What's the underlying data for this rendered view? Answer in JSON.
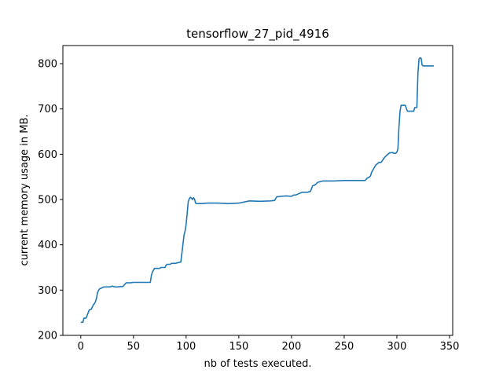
{
  "chart_data": {
    "type": "line",
    "title": "tensorflow_27_pid_4916",
    "xlabel": "nb of tests executed.",
    "ylabel": "current memory usage in MB.",
    "xlim": [
      -17,
      353
    ],
    "ylim": [
      200,
      840
    ],
    "xticks": [
      0,
      50,
      100,
      150,
      200,
      250,
      300,
      350
    ],
    "yticks": [
      200,
      300,
      400,
      500,
      600,
      700,
      800
    ],
    "grid": false,
    "series": [
      {
        "color": "#1f77b4",
        "x": [
          0,
          2,
          3,
          5,
          7,
          8,
          10,
          12,
          13,
          14,
          15,
          16,
          17,
          18,
          20,
          22,
          25,
          28,
          30,
          32,
          33,
          35,
          40,
          43,
          44,
          47,
          50,
          55,
          60,
          66,
          67,
          68,
          70,
          75,
          76,
          78,
          80,
          81,
          82,
          85,
          86,
          90,
          91,
          95,
          98,
          99,
          100,
          101,
          102,
          103,
          104,
          105,
          106,
          107,
          108,
          109,
          110,
          115,
          120,
          130,
          140,
          150,
          160,
          170,
          180,
          184,
          186,
          190,
          195,
          200,
          202,
          204,
          210,
          215,
          218,
          220,
          222,
          225,
          228,
          230,
          240,
          250,
          260,
          268,
          270,
          272,
          273,
          275,
          276,
          280,
          282,
          283,
          285,
          286,
          288,
          290,
          293,
          294,
          296,
          297,
          298,
          299,
          300,
          301,
          302,
          303,
          304,
          305,
          306,
          308,
          310,
          315,
          316,
          317,
          318,
          319,
          320,
          321,
          322,
          323,
          324,
          325,
          330,
          335
        ],
        "y": [
          229,
          229,
          238,
          238,
          250,
          256,
          258,
          268,
          270,
          275,
          283,
          295,
          300,
          303,
          305,
          307,
          307,
          307,
          309,
          307,
          307,
          307,
          308,
          316,
          316,
          316,
          317,
          317,
          317,
          317,
          332,
          340,
          348,
          348,
          350,
          350,
          350,
          355,
          357,
          357,
          359,
          359,
          360,
          362,
          422,
          430,
          445,
          470,
          495,
          502,
          505,
          503,
          500,
          504,
          500,
          492,
          491,
          491,
          492,
          492,
          491,
          492,
          497,
          496,
          497,
          498,
          506,
          507,
          508,
          507,
          510,
          510,
          516,
          516,
          518,
          530,
          532,
          538,
          540,
          541,
          541,
          542,
          542,
          542,
          542,
          548,
          548,
          552,
          560,
          576,
          580,
          582,
          582,
          585,
          592,
          597,
          603,
          603,
          604,
          602,
          602,
          602,
          605,
          612,
          660,
          695,
          708,
          708,
          708,
          708,
          695,
          695,
          695,
          703,
          703,
          703,
          780,
          810,
          813,
          812,
          797,
          795,
          795,
          795
        ]
      }
    ]
  }
}
